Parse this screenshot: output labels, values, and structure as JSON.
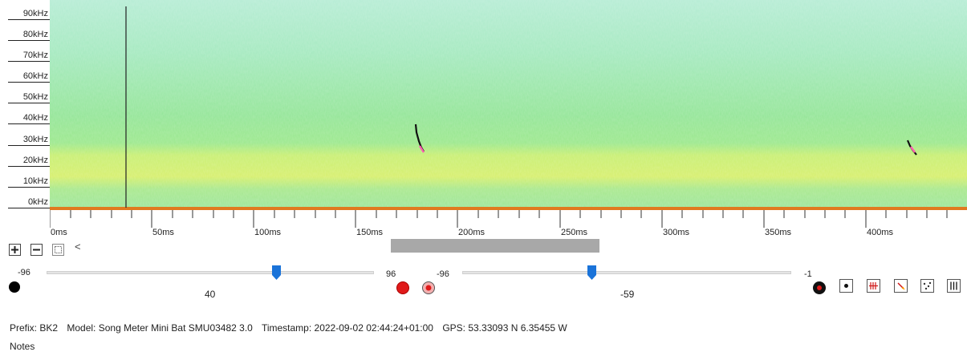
{
  "spectrogram": {
    "freq_labels": [
      "90kHz",
      "80kHz",
      "70kHz",
      "60kHz",
      "50kHz",
      "40kHz",
      "30kHz",
      "20kHz",
      "10kHz",
      "0kHz"
    ],
    "time_labels": [
      "0ms",
      "50ms",
      "100ms",
      "150ms",
      "200ms",
      "250ms",
      "300ms",
      "350ms",
      "400ms"
    ],
    "colors": {
      "background": "#9be59b",
      "band": "#d8ee6a",
      "cursor": "#222222",
      "baseline": "#e07a20",
      "call": "#111111",
      "call_highlight": "#ff5fb0"
    }
  },
  "zoom": {
    "zoom_in_icon": "plus-icon",
    "zoom_out_icon": "minus-icon",
    "fit_icon": "fit-icon",
    "scroll_left_label": "<"
  },
  "sliders": {
    "left": {
      "min_label": "-96",
      "max_label": "96",
      "value_label": "40"
    },
    "right": {
      "min_label": "-96",
      "max_label": "-1",
      "value_label": "-59"
    }
  },
  "metadata": {
    "prefix": "Prefix: BK2",
    "model": "Model: Song Meter Mini Bat SMU03482 3.0",
    "timestamp": "Timestamp: 2022-09-02 02:44:24+01:00",
    "gps": "GPS:  53.33093 N 6.35455 W"
  },
  "notes_label": "Notes"
}
